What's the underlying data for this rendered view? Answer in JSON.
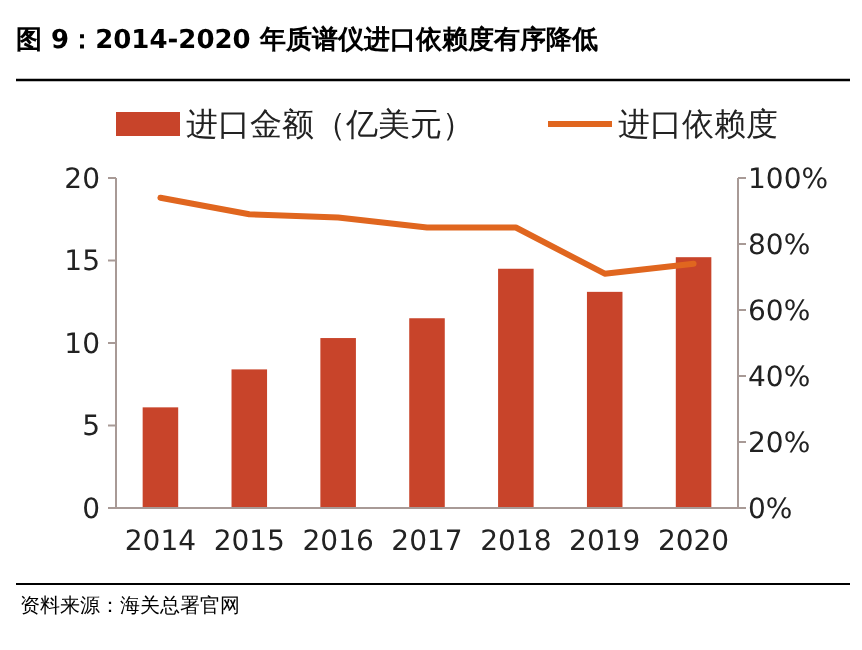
{
  "chart_data": {
    "type": "bar",
    "title": "图 9：2014-2020 年质谱仪进口依赖度有序降低",
    "categories": [
      "2014",
      "2015",
      "2016",
      "2017",
      "2018",
      "2019",
      "2020"
    ],
    "series": [
      {
        "name": "进口金额（亿美元）",
        "color": "#c8442a",
        "values": [
          6.1,
          8.4,
          10.3,
          11.5,
          14.5,
          13.1,
          15.2
        ]
      },
      {
        "name": "进口依赖度",
        "type": "line",
        "axis": "y2",
        "color": "#e0661f",
        "values": [
          94,
          89,
          88,
          85,
          85,
          71,
          74
        ]
      }
    ],
    "ylim": [
      0,
      20
    ],
    "yticks": [
      0,
      5,
      10,
      15,
      20
    ],
    "y2lim": [
      0,
      100
    ],
    "y2ticks": [
      {
        "value": 0,
        "label": "0%"
      },
      {
        "value": 20,
        "label": "20%"
      },
      {
        "value": 40,
        "label": "40%"
      },
      {
        "value": 60,
        "label": "60%"
      },
      {
        "value": 80,
        "label": "80%"
      },
      {
        "value": 100,
        "label": "100%"
      }
    ],
    "legend": "top",
    "grid": false,
    "marker": "none",
    "line_style": "solid",
    "annotations": [
      "资料来源：海关总署官网"
    ]
  }
}
